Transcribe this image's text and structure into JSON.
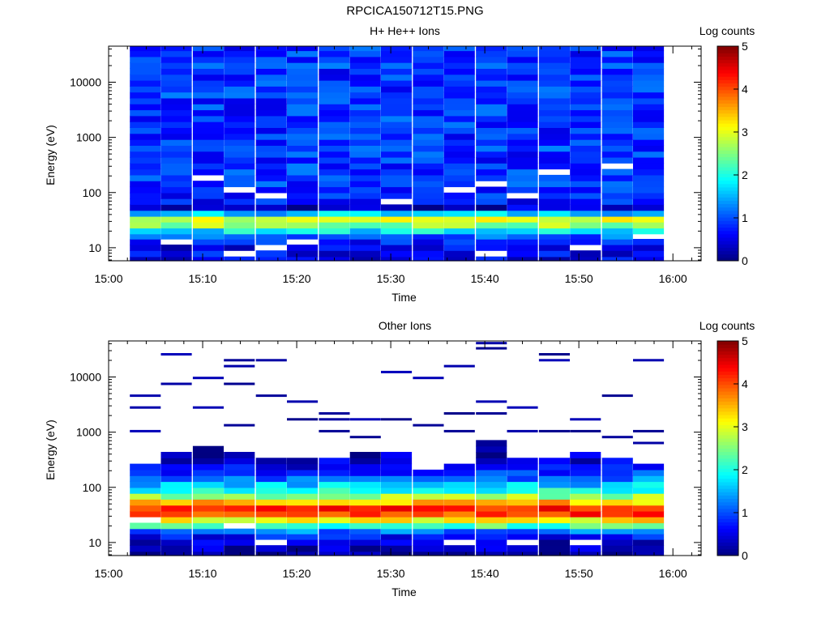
{
  "page": {
    "title": "RPCICA150712T15.PNG"
  },
  "chart_data": [
    {
      "type": "heatmap",
      "title": "H+ He++ Ions",
      "xlabel": "Time",
      "ylabel": "Energy (eV)",
      "colorbar_label": "Log counts",
      "x_ticks": [
        "15:00",
        "15:10",
        "15:20",
        "15:30",
        "15:40",
        "15:50",
        "16:00"
      ],
      "xlim_minutes": [
        0,
        63
      ],
      "y_scale": "log",
      "y_ticks": [
        "10",
        "100",
        "1000",
        "10000"
      ],
      "ylim": [
        5.8,
        45000
      ],
      "colorbar_ticks": [
        "0",
        "1",
        "2",
        "3",
        "4",
        "5"
      ],
      "clim": [
        0,
        5
      ],
      "time_columns_minutes": [
        2.3,
        5.6,
        9.0,
        12.3,
        15.7,
        19.0,
        22.4,
        25.7,
        29.0,
        32.4,
        35.7,
        39.1,
        42.4,
        45.8,
        49.1,
        52.5,
        55.8
      ],
      "energy_bins_eV": [
        6,
        8,
        10,
        13,
        16,
        20,
        26,
        33,
        42,
        54,
        69,
        88,
        113,
        145,
        185,
        237,
        303,
        388,
        497,
        636,
        814,
        1042,
        1334,
        1708,
        2186,
        2798,
        3581,
        4584,
        5868,
        7511,
        9614,
        12306,
        15752,
        20162,
        25808,
        33034,
        42284
      ],
      "profile_log_counts": [
        0.5,
        0.6,
        0.5,
        0.7,
        1.1,
        1.8,
        2.6,
        2.9,
        1.6,
        0.4,
        0.7,
        0.8,
        0.85,
        0.9,
        0.9,
        0.9,
        0.9,
        0.85,
        0.85,
        0.9,
        0.9,
        0.85,
        0.85,
        0.9,
        0.9,
        0.85,
        0.85,
        0.85,
        0.9,
        0.9,
        0.85,
        0.85,
        0.85,
        0.9,
        0.9,
        0.85,
        0.85
      ],
      "empty_cells": [
        [
          1,
          3
        ],
        [
          3,
          1
        ],
        [
          4,
          2
        ],
        [
          5,
          3
        ],
        [
          11,
          1
        ],
        [
          14,
          2
        ],
        [
          16,
          4
        ],
        [
          2,
          14
        ],
        [
          3,
          12
        ],
        [
          4,
          11
        ],
        [
          8,
          10
        ],
        [
          10,
          12
        ],
        [
          11,
          13
        ],
        [
          12,
          11
        ],
        [
          13,
          15
        ],
        [
          15,
          16
        ]
      ],
      "seed": 17
    },
    {
      "type": "heatmap",
      "title": "Other Ions",
      "xlabel": "Time",
      "ylabel": "Energy (eV)",
      "colorbar_label": "Log counts",
      "x_ticks": [
        "15:00",
        "15:10",
        "15:20",
        "15:30",
        "15:40",
        "15:50",
        "16:00"
      ],
      "xlim_minutes": [
        0,
        63
      ],
      "y_scale": "log",
      "y_ticks": [
        "10",
        "100",
        "1000",
        "10000"
      ],
      "ylim": [
        5.8,
        45000
      ],
      "colorbar_ticks": [
        "0",
        "1",
        "2",
        "3",
        "4",
        "5"
      ],
      "clim": [
        0,
        5
      ],
      "time_columns_minutes": [
        2.3,
        5.6,
        9.0,
        12.3,
        15.7,
        19.0,
        22.4,
        25.7,
        29.0,
        32.4,
        35.7,
        39.1,
        42.4,
        45.8,
        49.1,
        52.5,
        55.8
      ],
      "energy_bins_eV": [
        6,
        8,
        10,
        13,
        16,
        20,
        26,
        33,
        42,
        54,
        69,
        88,
        113,
        145,
        185,
        237,
        303,
        388,
        497,
        636,
        814,
        1042,
        1334,
        1708,
        2186,
        2798,
        3581,
        4584,
        5868,
        7511,
        9614,
        12306,
        15752,
        20162,
        25808,
        33034,
        42284
      ],
      "profile_log_counts": [
        0.1,
        0.3,
        0.4,
        0.7,
        1.2,
        2.2,
        3.2,
        4.1,
        4.3,
        3.4,
        2.6,
        2.0,
        1.6,
        1.2,
        0.9,
        0.6,
        0.4,
        0.3,
        0.2,
        0.2,
        0.1,
        0.1,
        0.1,
        0.1,
        0.1,
        0.1,
        0.1,
        0.1,
        0.1,
        0.1,
        0.1,
        0.1,
        0.1,
        0.1,
        0.1,
        0.1,
        0.1
      ],
      "coverage_top_bin": [
        15,
        17,
        18,
        17,
        16,
        16,
        16,
        17,
        17,
        14,
        15,
        19,
        16,
        16,
        17,
        16,
        15
      ],
      "sparse_high_energy_cells": [
        [
          0,
          21
        ],
        [
          0,
          25
        ],
        [
          0,
          27
        ],
        [
          1,
          29
        ],
        [
          1,
          34
        ],
        [
          2,
          25
        ],
        [
          2,
          30
        ],
        [
          3,
          22
        ],
        [
          3,
          29
        ],
        [
          3,
          32
        ],
        [
          3,
          33
        ],
        [
          4,
          27
        ],
        [
          4,
          33
        ],
        [
          5,
          23
        ],
        [
          5,
          26
        ],
        [
          6,
          21
        ],
        [
          6,
          23
        ],
        [
          6,
          24
        ],
        [
          7,
          20
        ],
        [
          7,
          23
        ],
        [
          8,
          23
        ],
        [
          8,
          31
        ],
        [
          9,
          22
        ],
        [
          9,
          30
        ],
        [
          10,
          21
        ],
        [
          10,
          24
        ],
        [
          10,
          32
        ],
        [
          11,
          24
        ],
        [
          11,
          26
        ],
        [
          11,
          35
        ],
        [
          11,
          36
        ],
        [
          12,
          21
        ],
        [
          12,
          25
        ],
        [
          13,
          21
        ],
        [
          13,
          33
        ],
        [
          13,
          34
        ],
        [
          14,
          21
        ],
        [
          14,
          23
        ],
        [
          15,
          20
        ],
        [
          15,
          27
        ],
        [
          16,
          19
        ],
        [
          16,
          21
        ],
        [
          16,
          33
        ]
      ],
      "empty_cells": [
        [
          4,
          2
        ],
        [
          10,
          2
        ],
        [
          12,
          2
        ],
        [
          14,
          2
        ],
        [
          0,
          6
        ],
        [
          3,
          5
        ]
      ],
      "seed": 91
    }
  ]
}
